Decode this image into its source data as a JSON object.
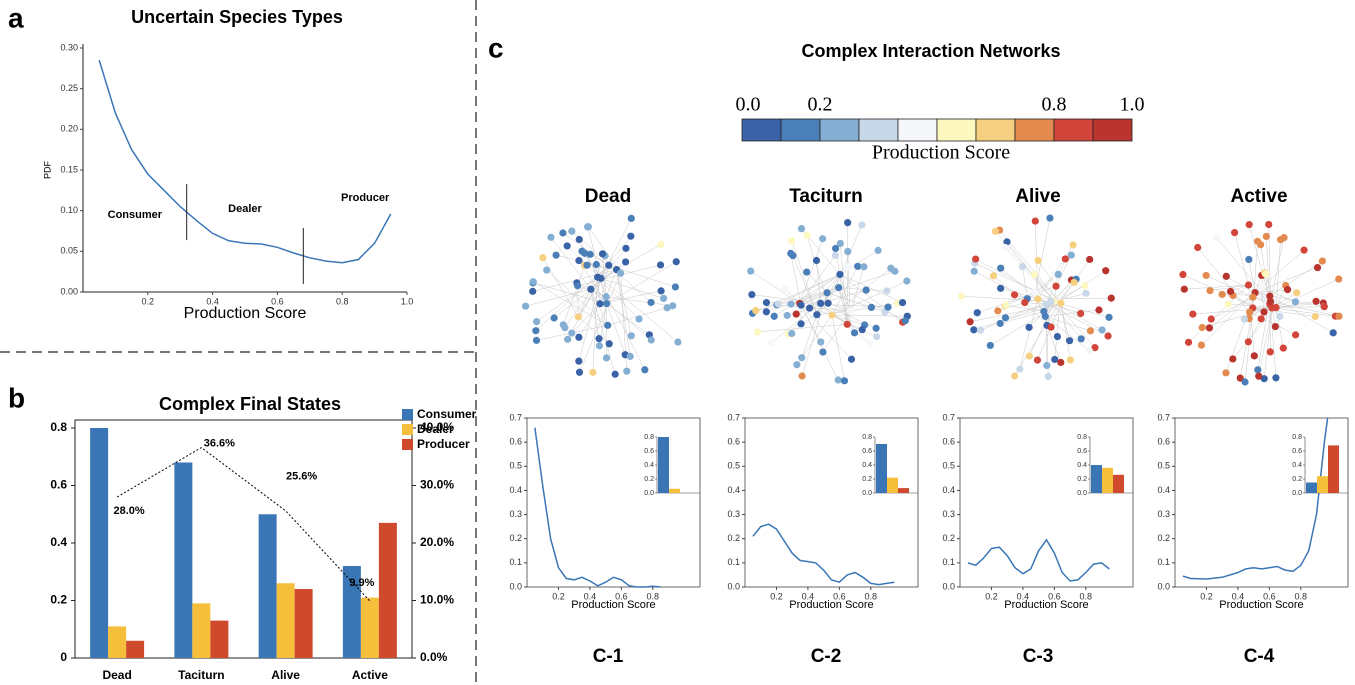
{
  "panels": [
    "a",
    "b",
    "c"
  ],
  "network_title": "Complex Interaction Networks",
  "colorbar": {
    "title": "Production Score",
    "ticks": [
      {
        "value": 0,
        "label": "0.0"
      },
      0.2,
      0.8,
      {
        "value": 1,
        "label": "1.0"
      }
    ],
    "colors": [
      "#3a62a7",
      "#4a7fb8",
      "#85aed3",
      "#c8d8e8",
      "#f5f7fb",
      "#fdf7c0",
      "#f6cf80",
      "#e38a4f",
      "#d2453a",
      "#b8342d"
    ]
  },
  "chart_data": [
    {
      "type": "line",
      "title": "Uncertain Species Types",
      "x_label": "Production Score",
      "y_label": "PDF",
      "color": "#3a76b6",
      "x": [
        0.05,
        0.1,
        0.15,
        0.2,
        0.25,
        0.3,
        0.35,
        0.4,
        0.45,
        0.5,
        0.55,
        0.6,
        0.65,
        0.7,
        0.75,
        0.8,
        0.85,
        0.9,
        0.95
      ],
      "values": [
        0.285,
        0.22,
        0.175,
        0.145,
        0.125,
        0.105,
        0.088,
        0.072,
        0.063,
        0.06,
        0.059,
        0.055,
        0.048,
        0.042,
        0.038,
        0.036,
        0.04,
        0.06,
        0.096
      ],
      "thresholds": [
        0.32,
        0.68
      ],
      "region_labels": [
        "Consumer",
        "Dealer",
        "Producer"
      ],
      "xlim": [
        0,
        1
      ],
      "xticks": [
        0.2,
        0.4,
        0.6,
        0.8,
        {
          "value": 1,
          "label": "1.0"
        }
      ],
      "ylim": [
        0,
        0.3
      ],
      "yticks": [
        {
          "value": 0,
          "label": "0.00"
        },
        0.05,
        {
          "value": 0.1,
          "label": "0.10"
        },
        0.15,
        {
          "value": 0.2,
          "label": "0.20"
        },
        0.25,
        {
          "value": 0.3,
          "label": "0.30"
        }
      ]
    },
    {
      "type": "bar",
      "title": "Complex Final States",
      "categories": [
        "Dead",
        "Taciturn",
        "Alive",
        "Active"
      ],
      "series": [
        {
          "name": "Consumer",
          "color": "#3a76b6",
          "values": [
            0.8,
            0.68,
            0.5,
            0.32
          ]
        },
        {
          "name": "Dealer",
          "color": "#f5bf3c",
          "values": [
            0.11,
            0.19,
            0.26,
            0.21
          ]
        },
        {
          "name": "Producer",
          "color": "#cf4a2c",
          "values": [
            0.06,
            0.13,
            0.24,
            0.47
          ]
        },
        {
          "axis": "y2",
          "color": "#000000",
          "line_style": "dotted",
          "values": [
            28.0,
            36.6,
            25.6,
            9.9
          ],
          "value_labels": [
            "28.0%",
            "36.6%",
            "25.6%",
            "9.9%"
          ]
        }
      ],
      "ylim": [
        0,
        0.8
      ],
      "yticks": [
        0,
        0.2,
        0.4,
        0.6,
        0.8
      ],
      "y2lim": [
        0,
        40
      ],
      "y2ticks": [
        {
          "value": 0,
          "label": "0.0%"
        },
        {
          "value": 10,
          "label": "10.0%"
        },
        {
          "value": 20,
          "label": "20.0%"
        },
        {
          "value": 30,
          "label": "30.0%"
        },
        {
          "value": 40,
          "label": "40.0%"
        }
      ],
      "legend": "upper-right"
    },
    {
      "type": "line",
      "title": "Dead",
      "caption": "C-1",
      "x_label": "Production Score",
      "color": "#3a76b6",
      "x": [
        0.05,
        0.1,
        0.15,
        0.2,
        0.25,
        0.3,
        0.35,
        0.4,
        0.45,
        0.5,
        0.55,
        0.6,
        0.65,
        0.7,
        0.75,
        0.8,
        0.85
      ],
      "values": [
        0.66,
        0.42,
        0.2,
        0.08,
        0.035,
        0.03,
        0.04,
        0.025,
        0.005,
        0.02,
        0.04,
        0.03,
        0.005,
        0,
        0,
        0.003,
        0
      ],
      "xlim": [
        0,
        1.1
      ],
      "xticks": [
        0.2,
        0.4,
        0.6,
        0.8
      ],
      "ylim": [
        0,
        0.7
      ],
      "yticks": [
        {
          "value": 0,
          "label": "0.0"
        },
        0.1,
        0.2,
        0.3,
        0.4,
        0.5,
        0.6,
        0.7
      ],
      "inset": {
        "type": "bar",
        "values": [
          0.8,
          0.06,
          0
        ],
        "colors": [
          "#3a76b6",
          "#f5bf3c",
          "#cf4a2c"
        ],
        "ylim": [
          0,
          0.8
        ],
        "yticks": [
          {
            "value": 0,
            "label": "0.0"
          },
          0.2,
          0.4,
          0.6,
          0.8
        ]
      }
    },
    {
      "type": "line",
      "title": "Taciturn",
      "caption": "C-2",
      "x_label": "Production Score",
      "color": "#3a76b6",
      "x": [
        0.05,
        0.1,
        0.15,
        0.2,
        0.25,
        0.3,
        0.35,
        0.4,
        0.45,
        0.5,
        0.55,
        0.6,
        0.65,
        0.7,
        0.75,
        0.8,
        0.85,
        0.9,
        0.95
      ],
      "values": [
        0.21,
        0.25,
        0.26,
        0.24,
        0.19,
        0.14,
        0.11,
        0.105,
        0.1,
        0.07,
        0.03,
        0.02,
        0.05,
        0.06,
        0.04,
        0.015,
        0.01,
        0.015,
        0.02
      ],
      "xlim": [
        0,
        1.1
      ],
      "xticks": [
        0.2,
        0.4,
        0.6,
        0.8
      ],
      "ylim": [
        0,
        0.7
      ],
      "yticks": [
        {
          "value": 0,
          "label": "0.0"
        },
        0.1,
        0.2,
        0.3,
        0.4,
        0.5,
        0.6,
        0.7
      ],
      "inset": {
        "type": "bar",
        "values": [
          0.7,
          0.22,
          0.07
        ],
        "colors": [
          "#3a76b6",
          "#f5bf3c",
          "#cf4a2c"
        ],
        "ylim": [
          0,
          0.8
        ],
        "yticks": [
          {
            "value": 0,
            "label": "0.0"
          },
          0.2,
          0.4,
          0.6,
          0.8
        ]
      }
    },
    {
      "type": "line",
      "title": "Alive",
      "caption": "C-3",
      "x_label": "Production Score",
      "color": "#3a76b6",
      "x": [
        0.05,
        0.1,
        0.15,
        0.2,
        0.25,
        0.3,
        0.35,
        0.4,
        0.45,
        0.5,
        0.55,
        0.6,
        0.65,
        0.7,
        0.75,
        0.8,
        0.85,
        0.9,
        0.95
      ],
      "values": [
        0.1,
        0.09,
        0.12,
        0.16,
        0.165,
        0.13,
        0.08,
        0.055,
        0.075,
        0.15,
        0.195,
        0.14,
        0.06,
        0.025,
        0.03,
        0.06,
        0.095,
        0.1,
        0.075
      ],
      "xlim": [
        0,
        1.1
      ],
      "xticks": [
        0.2,
        0.4,
        0.6,
        0.8
      ],
      "ylim": [
        0,
        0.7
      ],
      "yticks": [
        {
          "value": 0,
          "label": "0.0"
        },
        0.1,
        0.2,
        0.3,
        0.4,
        0.5,
        0.6,
        0.7
      ],
      "inset": {
        "type": "bar",
        "values": [
          0.4,
          0.36,
          0.26
        ],
        "colors": [
          "#3a76b6",
          "#f5bf3c",
          "#cf4a2c"
        ],
        "ylim": [
          0,
          0.8
        ],
        "yticks": [
          {
            "value": 0,
            "label": "0.0"
          },
          0.2,
          0.4,
          0.6,
          0.8
        ]
      }
    },
    {
      "type": "line",
      "title": "Active",
      "caption": "C-4",
      "x_label": "Production Score",
      "color": "#3a76b6",
      "x": [
        0.05,
        0.1,
        0.2,
        0.3,
        0.4,
        0.45,
        0.5,
        0.55,
        0.6,
        0.65,
        0.7,
        0.75,
        0.8,
        0.85,
        0.9,
        0.95,
        0.97
      ],
      "values": [
        0.045,
        0.035,
        0.033,
        0.04,
        0.06,
        0.075,
        0.08,
        0.075,
        0.08,
        0.085,
        0.07,
        0.065,
        0.09,
        0.15,
        0.3,
        0.6,
        0.7
      ],
      "xlim": [
        0,
        1.1
      ],
      "xticks": [
        0.2,
        0.4,
        0.6,
        0.8
      ],
      "ylim": [
        0,
        0.7
      ],
      "yticks": [
        {
          "value": 0,
          "label": "0.0"
        },
        0.1,
        0.2,
        0.3,
        0.4,
        0.5,
        0.6,
        0.7
      ],
      "inset": {
        "type": "bar",
        "values": [
          0.15,
          0.24,
          0.68
        ],
        "colors": [
          "#3a76b6",
          "#f5bf3c",
          "#cf4a2c"
        ],
        "ylim": [
          0,
          0.8
        ],
        "yticks": [
          {
            "value": 0,
            "label": "0.0"
          },
          0.2,
          0.4,
          0.6,
          0.8
        ]
      }
    }
  ]
}
